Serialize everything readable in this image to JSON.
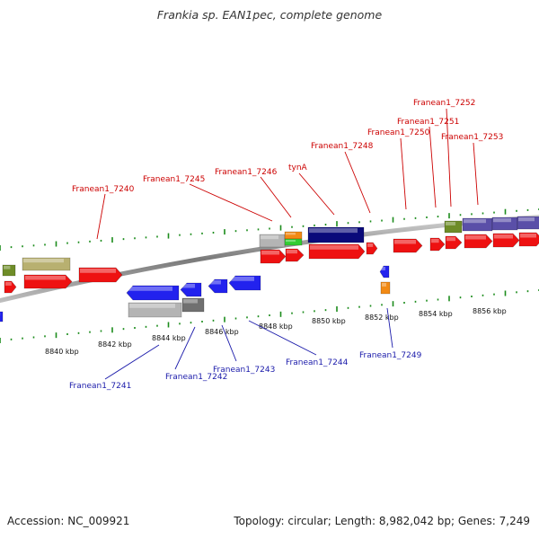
{
  "title": "Frankia sp. EAN1pec, complete genome",
  "footer": {
    "accession": "Accession: NC_009921",
    "topology": "Topology: circular; Length: 8,982,042 bp; Genes: 7,249"
  },
  "colors": {
    "forward_label": "#cc0000",
    "reverse_label": "#1a1aaa",
    "backbone": "#8c8c8c",
    "tick_green": "#1b8c1b",
    "gene_red": "#ee1111",
    "gene_blue": "#2222ee",
    "gene_navy": "#0a0a7a",
    "gene_purple": "#5a4fa8",
    "gene_olive": "#6e8c28",
    "gene_khaki": "#b8b070",
    "gene_grey": "#b4b4b4",
    "gene_darkgrey": "#707070",
    "gene_orange": "#f28a14",
    "gene_green": "#33cc33"
  },
  "kbp_labels": [
    "8840 kbp",
    "8842 kbp",
    "8844 kbp",
    "8846 kbp",
    "8848 kbp",
    "8850 kbp",
    "8852 kbp",
    "8854 kbp",
    "8856 kbp"
  ],
  "forward_labels": [
    "Franean1_7240",
    "Franean1_7245",
    "Franean1_7246",
    "tynA",
    "Franean1_7248",
    "Franean1_7250",
    "Franean1_7251",
    "Franean1_7252",
    "Franean1_7253"
  ],
  "reverse_labels": [
    "Franean1_7241",
    "Franean1_7242",
    "Franean1_7243",
    "Franean1_7244",
    "Franean1_7249"
  ]
}
